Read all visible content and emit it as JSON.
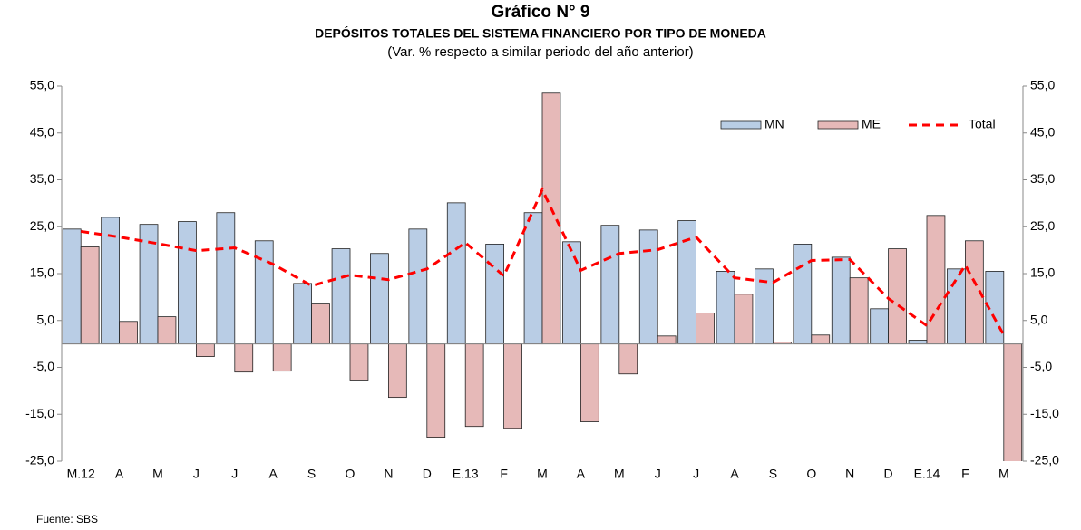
{
  "chart_data": {
    "type": "bar",
    "title": "Gráfico N° 9",
    "subtitle": "DEPÓSITOS TOTALES  DEL SISTEMA FINANCIERO POR TIPO DE MONEDA",
    "note": "(Var. % respecto a similar periodo del año anterior)",
    "source": "Fuente: SBS",
    "categories": [
      "M.12",
      "A",
      "M",
      "J",
      "J",
      "A",
      "S",
      "O",
      "N",
      "D",
      "E.13",
      "F",
      "M",
      "A",
      "M",
      "J",
      "J",
      "A",
      "S",
      "O",
      "N",
      "D",
      "E.14",
      "F",
      "M"
    ],
    "series": [
      {
        "name": "MN",
        "type": "bar",
        "color": "#b9cde5",
        "values": [
          24.5,
          27.0,
          25.5,
          26.1,
          28.0,
          22.0,
          12.9,
          20.3,
          19.3,
          24.5,
          30.1,
          21.3,
          28.0,
          21.8,
          25.3,
          24.3,
          26.3,
          15.5,
          16.0,
          21.3,
          18.5,
          7.5,
          0.8,
          16.0,
          15.5
        ]
      },
      {
        "name": "ME",
        "type": "bar",
        "color": "#e6b9b8",
        "values": [
          20.7,
          4.8,
          5.8,
          -2.7,
          -6.0,
          -5.8,
          8.7,
          -7.7,
          -11.4,
          -19.9,
          -17.6,
          -18.0,
          53.5,
          -16.6,
          -6.4,
          1.7,
          6.6,
          10.6,
          0.4,
          1.9,
          14.1,
          20.3,
          27.4,
          22.0,
          -28.0
        ]
      },
      {
        "name": "Total",
        "type": "line",
        "color": "#ff0000",
        "values": [
          24.0,
          22.8,
          21.4,
          19.9,
          20.5,
          17.0,
          12.4,
          14.7,
          13.7,
          16.0,
          21.6,
          14.5,
          32.9,
          15.7,
          19.3,
          20.1,
          22.8,
          14.1,
          13.1,
          17.8,
          18.0,
          9.7,
          3.9,
          16.8,
          1.9
        ]
      }
    ],
    "ylim": [
      -25,
      55
    ],
    "yticks": [
      {
        "value": -25,
        "label": "-25,0"
      },
      {
        "value": -15,
        "label": "-15,0"
      },
      {
        "value": -5,
        "label": "-5,0"
      },
      {
        "value": 5,
        "label": "5,0"
      },
      {
        "value": 15,
        "label": "15,0"
      },
      {
        "value": 25,
        "label": "25,0"
      },
      {
        "value": 35,
        "label": "35,0"
      },
      {
        "value": 45,
        "label": "45,0"
      },
      {
        "value": 55,
        "label": "55,0"
      }
    ],
    "y2lim": [
      -25,
      55
    ],
    "y2ticks": [
      {
        "value": -25,
        "label": "-25,0"
      },
      {
        "value": -15,
        "label": "-15,0"
      },
      {
        "value": -5,
        "label": "-5,0"
      },
      {
        "value": 5,
        "label": "5,0"
      },
      {
        "value": 15,
        "label": "15,0"
      },
      {
        "value": 25,
        "label": "25,0"
      },
      {
        "value": 35,
        "label": "35,0"
      },
      {
        "value": 45,
        "label": "45,0"
      },
      {
        "value": 55,
        "label": "55,0"
      }
    ],
    "grid": false,
    "legend": "top-right"
  }
}
